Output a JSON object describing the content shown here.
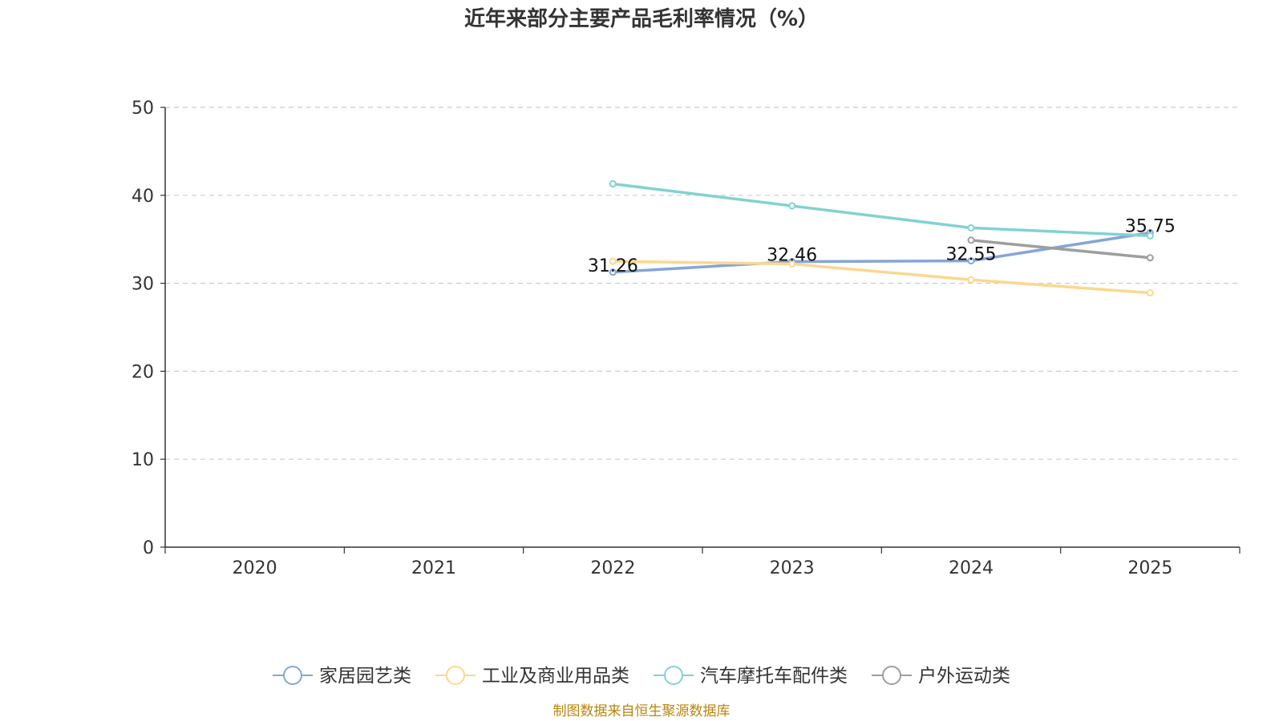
{
  "chart_data": {
    "type": "line",
    "title": "近年来部分主要产品毛利率情况（%）",
    "x": [
      "2020",
      "2021",
      "2022",
      "2023",
      "2024",
      "2025"
    ],
    "ylim": [
      0,
      50
    ],
    "yticks": [
      0,
      10,
      20,
      30,
      40,
      50
    ],
    "grid": true,
    "legend_position": "bottom",
    "series": [
      {
        "name": "家居园艺类",
        "color": "#85a5d8",
        "values": [
          null,
          null,
          31.26,
          32.46,
          32.55,
          35.75
        ],
        "labels": [
          null,
          null,
          "31.26",
          "32.46",
          "32.55",
          "35.75"
        ]
      },
      {
        "name": "工业及商业用品类",
        "color": "#fbd88e",
        "values": [
          null,
          null,
          32.5,
          32.2,
          30.4,
          28.9
        ],
        "labels": [
          null,
          null,
          null,
          null,
          null,
          null
        ]
      },
      {
        "name": "汽车摩托车配件类",
        "color": "#82d2d2",
        "values": [
          null,
          null,
          41.3,
          38.8,
          36.3,
          35.4
        ],
        "labels": [
          null,
          null,
          null,
          null,
          null,
          null
        ]
      },
      {
        "name": "户外运动类",
        "color": "#9e9e9e",
        "values": [
          null,
          null,
          null,
          null,
          34.9,
          32.9
        ],
        "labels": [
          null,
          null,
          null,
          null,
          null,
          null
        ]
      }
    ],
    "source": "制图数据来自恒生聚源数据库"
  }
}
